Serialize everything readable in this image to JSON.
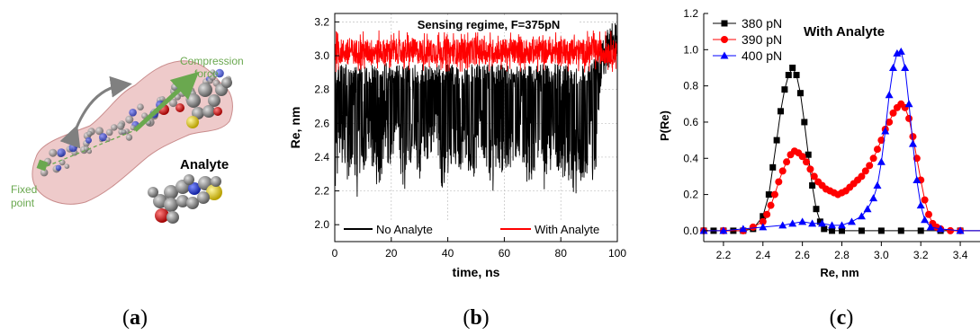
{
  "panels": {
    "a": {
      "label_parts": [
        "(",
        "a",
        ")"
      ],
      "annotations": {
        "compression": [
          "Compression",
          "force"
        ],
        "fixed": [
          "Fixed",
          "point"
        ],
        "analyte": "Analyte"
      },
      "colors": {
        "annotation_green": "#6aa84f",
        "arrow_gray": "#808080",
        "envelope": "#e8b8b8",
        "envelope_stroke": "#c98c8c",
        "atom_gray": "#8a8a8a",
        "atom_red": "#d01010",
        "atom_yellow": "#e6d21c",
        "atom_blue": "#2233cc",
        "atom_white": "#f2f2f2"
      }
    },
    "b": {
      "label_parts": [
        "(",
        "b",
        ")"
      ],
      "colors": {
        "no_analyte": "#000000",
        "with_analyte": "#ff0000"
      }
    },
    "c": {
      "label_parts": [
        "(",
        "c",
        ")"
      ],
      "colors": {
        "s380": "#000000",
        "s390": "#ff0000",
        "s400": "#0000ff"
      }
    }
  },
  "chart_data": [
    {
      "id": "b",
      "type": "line",
      "title": "Sensing regime, F=375pN",
      "xlabel": "time, ns",
      "ylabel": "Re, nm",
      "xlim": [
        0,
        100
      ],
      "ylim": [
        1.9,
        3.25
      ],
      "xticks": [
        "0",
        "20",
        "40",
        "60",
        "80",
        "100"
      ],
      "yticks": [
        "2.0",
        "2.2",
        "2.4",
        "2.6",
        "2.8",
        "3.0",
        "3.2"
      ],
      "grid": true,
      "legend_placement": "bottom",
      "series": [
        {
          "name": "No Analyte",
          "color": "#000000",
          "time": [
            0,
            2,
            4,
            6,
            8,
            10,
            12,
            14,
            16,
            18,
            20,
            22,
            24,
            26,
            28,
            30,
            32,
            34,
            36,
            38,
            40,
            42,
            44,
            46,
            48,
            50,
            52,
            54,
            56,
            58,
            60,
            62,
            64,
            66,
            68,
            70,
            72,
            74,
            76,
            78,
            80,
            82,
            84,
            86,
            88,
            90,
            92,
            94,
            96,
            98,
            100
          ],
          "high": [
            2.95,
            2.95,
            2.95,
            2.92,
            2.95,
            2.95,
            2.94,
            2.95,
            2.95,
            2.96,
            2.95,
            2.95,
            2.94,
            2.95,
            2.95,
            2.95,
            2.95,
            2.95,
            2.95,
            2.95,
            2.95,
            2.95,
            2.94,
            2.95,
            2.95,
            2.95,
            2.95,
            2.95,
            2.95,
            2.95,
            2.95,
            2.95,
            2.95,
            2.95,
            2.95,
            2.95,
            2.95,
            2.95,
            2.95,
            2.95,
            2.95,
            2.95,
            2.95,
            2.95,
            2.95,
            2.95,
            3.0,
            3.1,
            3.15,
            3.15,
            3.18
          ],
          "low": [
            2.18,
            2.4,
            2.2,
            2.35,
            2.15,
            2.3,
            2.45,
            2.25,
            2.2,
            2.4,
            2.3,
            2.6,
            2.15,
            2.3,
            2.4,
            2.25,
            2.35,
            2.4,
            2.5,
            2.2,
            2.3,
            2.35,
            2.3,
            2.4,
            2.25,
            2.3,
            2.45,
            2.3,
            2.2,
            2.35,
            2.25,
            2.3,
            2.4,
            2.35,
            2.2,
            2.25,
            2.4,
            2.2,
            2.3,
            2.35,
            2.25,
            2.3,
            2.15,
            2.2,
            2.25,
            2.3,
            2.2,
            2.8,
            2.9,
            2.95,
            2.95
          ]
        },
        {
          "name": "With Analyte",
          "color": "#ff0000",
          "time": [
            0,
            100
          ],
          "center": 3.03,
          "band": [
            2.9,
            3.15
          ]
        }
      ]
    },
    {
      "id": "c",
      "type": "line",
      "title": "With Analyte",
      "xlabel": "Re, nm",
      "ylabel": "P(Re)",
      "xlim": [
        2.1,
        3.5
      ],
      "ylim": [
        -0.06,
        1.2
      ],
      "xticks": [
        "2.2",
        "2.4",
        "2.6",
        "2.8",
        "3.0",
        "3.2",
        "3.4"
      ],
      "yticks": [
        "0.0",
        "0.2",
        "0.4",
        "0.6",
        "0.8",
        "1.0",
        "1.2"
      ],
      "grid": false,
      "legend_placement": "top-left",
      "series": [
        {
          "name": "380 pN",
          "color": "#000000",
          "marker": "square",
          "x": [
            2.1,
            2.15,
            2.2,
            2.25,
            2.3,
            2.35,
            2.4,
            2.43,
            2.45,
            2.47,
            2.49,
            2.51,
            2.53,
            2.55,
            2.57,
            2.59,
            2.61,
            2.63,
            2.65,
            2.67,
            2.69,
            2.71,
            2.75,
            2.8,
            2.9,
            3.0,
            3.1,
            3.2,
            3.3,
            3.4,
            3.5
          ],
          "y": [
            0,
            0,
            0,
            0,
            0,
            0.01,
            0.08,
            0.2,
            0.35,
            0.5,
            0.66,
            0.78,
            0.86,
            0.9,
            0.86,
            0.76,
            0.6,
            0.42,
            0.25,
            0.12,
            0.05,
            0.01,
            0,
            0,
            0,
            0,
            0,
            0,
            0,
            0,
            0
          ]
        },
        {
          "name": "390 pN",
          "color": "#ff0000",
          "marker": "circle",
          "x": [
            2.1,
            2.2,
            2.3,
            2.35,
            2.4,
            2.42,
            2.44,
            2.46,
            2.48,
            2.5,
            2.52,
            2.54,
            2.56,
            2.58,
            2.6,
            2.62,
            2.64,
            2.66,
            2.68,
            2.7,
            2.72,
            2.74,
            2.76,
            2.78,
            2.8,
            2.82,
            2.84,
            2.86,
            2.88,
            2.9,
            2.92,
            2.94,
            2.96,
            2.98,
            3.0,
            3.02,
            3.04,
            3.06,
            3.08,
            3.1,
            3.12,
            3.14,
            3.16,
            3.18,
            3.2,
            3.22,
            3.24,
            3.26,
            3.28,
            3.3,
            3.35,
            3.4,
            3.5
          ],
          "y": [
            0,
            0,
            0,
            0.02,
            0.05,
            0.09,
            0.14,
            0.2,
            0.27,
            0.33,
            0.38,
            0.42,
            0.44,
            0.43,
            0.41,
            0.38,
            0.34,
            0.3,
            0.27,
            0.25,
            0.23,
            0.22,
            0.21,
            0.2,
            0.21,
            0.22,
            0.24,
            0.26,
            0.28,
            0.3,
            0.33,
            0.36,
            0.4,
            0.45,
            0.5,
            0.56,
            0.6,
            0.65,
            0.68,
            0.7,
            0.68,
            0.62,
            0.52,
            0.4,
            0.28,
            0.17,
            0.09,
            0.04,
            0.02,
            0.01,
            0,
            0,
            0
          ]
        },
        {
          "name": "400 pN",
          "color": "#0000ff",
          "marker": "triangle",
          "x": [
            2.1,
            2.2,
            2.3,
            2.4,
            2.5,
            2.55,
            2.6,
            2.65,
            2.7,
            2.75,
            2.8,
            2.85,
            2.9,
            2.93,
            2.96,
            2.98,
            3.0,
            3.02,
            3.04,
            3.06,
            3.08,
            3.1,
            3.12,
            3.14,
            3.16,
            3.18,
            3.2,
            3.22,
            3.25,
            3.3,
            3.4,
            3.5
          ],
          "y": [
            0,
            0,
            0.01,
            0.02,
            0.03,
            0.04,
            0.05,
            0.04,
            0.04,
            0.03,
            0.03,
            0.05,
            0.08,
            0.12,
            0.18,
            0.25,
            0.38,
            0.55,
            0.75,
            0.9,
            0.98,
            0.99,
            0.9,
            0.7,
            0.48,
            0.28,
            0.14,
            0.06,
            0.02,
            0.01,
            0,
            0
          ]
        }
      ]
    }
  ]
}
